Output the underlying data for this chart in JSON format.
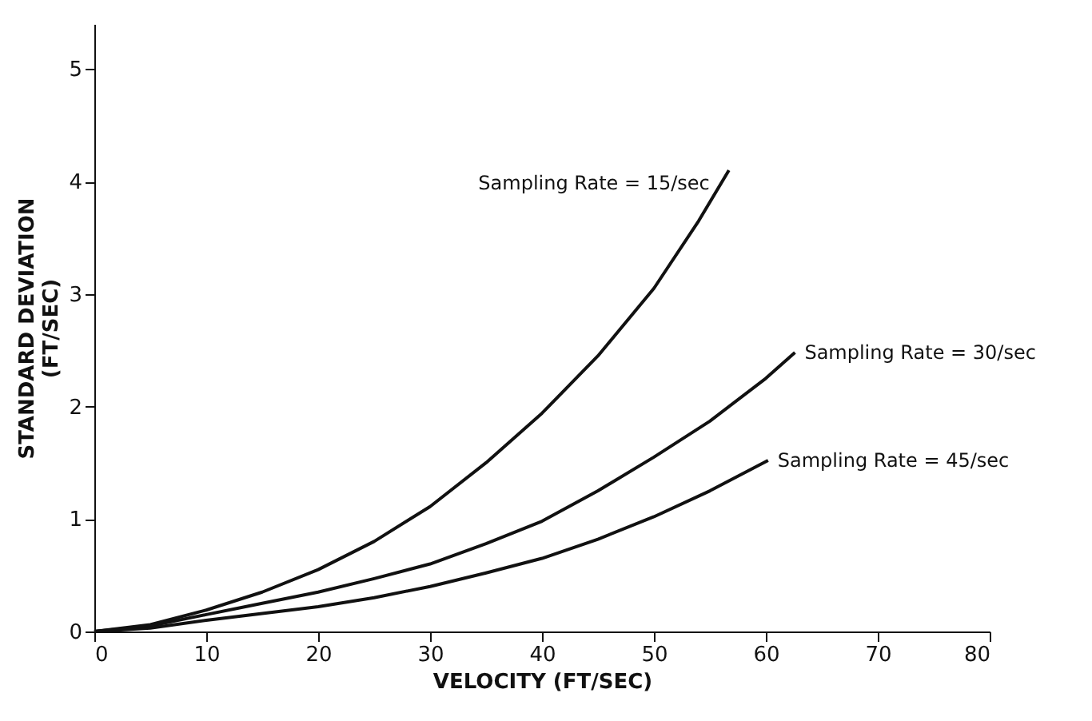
{
  "chart_data": {
    "type": "line",
    "xlabel": "VELOCITY (FT/SEC)",
    "ylabel": "STANDARD DEVIATION\n(FT/SEC)",
    "xlim": [
      0,
      80
    ],
    "xticks": [
      0,
      10,
      20,
      30,
      40,
      50,
      60,
      70,
      80
    ],
    "ylim": [
      0,
      5.4
    ],
    "yticks": [
      0,
      1,
      2,
      3,
      4,
      5
    ],
    "grid": false,
    "legend": false,
    "marker": "none",
    "line_style": "solid",
    "series": [
      {
        "name": "Sampling Rate = 15/sec",
        "color": "#111111",
        "x": [
          0,
          5,
          10,
          15,
          20,
          25,
          30,
          35,
          40,
          45,
          50,
          54,
          56.7
        ],
        "values": [
          0,
          0.06,
          0.19,
          0.35,
          0.55,
          0.8,
          1.11,
          1.5,
          1.94,
          2.45,
          3.05,
          3.65,
          4.1
        ]
      },
      {
        "name": "Sampling Rate = 30/sec",
        "color": "#111111",
        "x": [
          0,
          5,
          10,
          15,
          20,
          25,
          30,
          35,
          40,
          45,
          50,
          55,
          60,
          62.6
        ],
        "values": [
          0,
          0.05,
          0.15,
          0.25,
          0.35,
          0.47,
          0.6,
          0.78,
          0.98,
          1.25,
          1.55,
          1.87,
          2.25,
          2.48
        ]
      },
      {
        "name": "Sampling Rate = 45/sec",
        "color": "#111111",
        "x": [
          0,
          5,
          10,
          15,
          20,
          25,
          30,
          35,
          40,
          45,
          50,
          55,
          60.2
        ],
        "values": [
          0,
          0.03,
          0.1,
          0.16,
          0.22,
          0.3,
          0.4,
          0.52,
          0.65,
          0.82,
          1.02,
          1.25,
          1.52
        ]
      }
    ]
  }
}
